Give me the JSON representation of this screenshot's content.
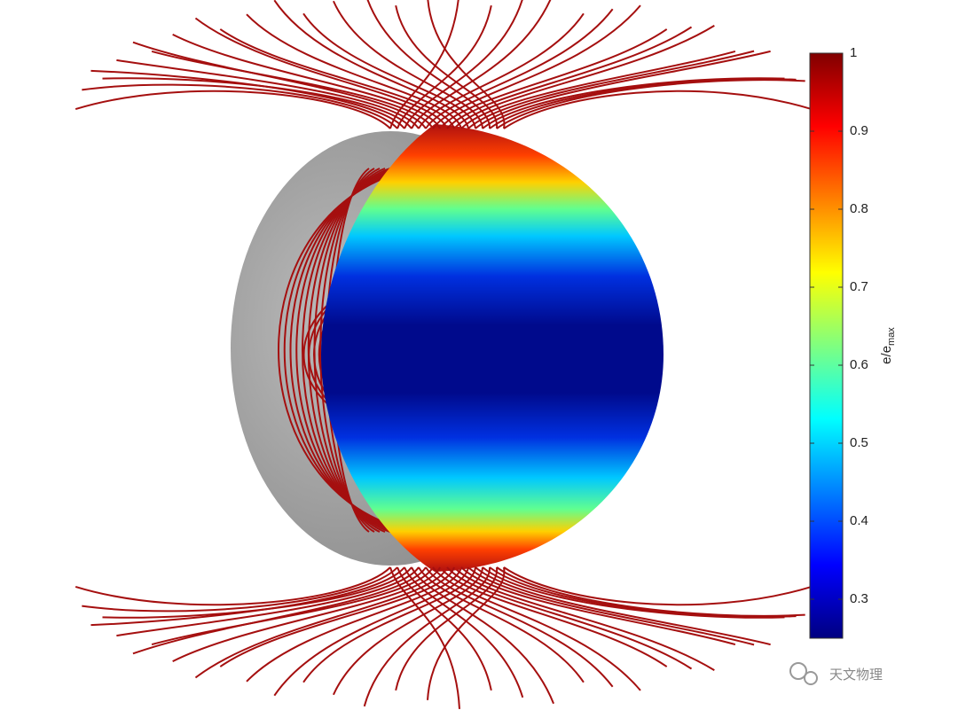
{
  "colorbar": {
    "label": "e/e",
    "label_sub": "max",
    "clim": [
      0.25,
      1
    ],
    "ticks": [
      0.3,
      0.4,
      0.5,
      0.6,
      0.7,
      0.8,
      0.9,
      1
    ]
  },
  "watermark": "天文物理"
}
